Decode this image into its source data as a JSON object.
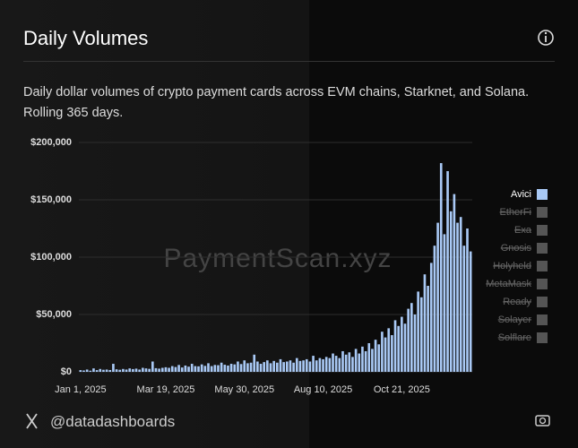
{
  "header": {
    "title": "Daily Volumes",
    "description": "Daily dollar volumes of crypto payment cards across EVM chains, Starknet, and Solana. Rolling 365 days."
  },
  "chart_data": {
    "type": "bar",
    "categories": [
      "Jan 1, 2025",
      null,
      null,
      null,
      null,
      null,
      null,
      null,
      null,
      null,
      null,
      null,
      null,
      null,
      null,
      null,
      null,
      null,
      null,
      null,
      null,
      null,
      null,
      null,
      null,
      null,
      "Mar 19, 2025",
      null,
      null,
      null,
      null,
      null,
      null,
      null,
      null,
      null,
      null,
      null,
      null,
      null,
      null,
      null,
      null,
      null,
      null,
      null,
      null,
      null,
      null,
      null,
      "May 30, 2025",
      null,
      null,
      null,
      null,
      null,
      null,
      null,
      null,
      null,
      null,
      null,
      null,
      null,
      null,
      null,
      null,
      null,
      null,
      null,
      null,
      null,
      null,
      null,
      "Aug 10, 2025",
      null,
      null,
      null,
      null,
      null,
      null,
      null,
      null,
      null,
      null,
      null,
      null,
      null,
      null,
      null,
      null,
      null,
      null,
      null,
      null,
      null,
      null,
      null,
      "Oct 21, 2025",
      null,
      null,
      null,
      null,
      null,
      null,
      null,
      null,
      null,
      null,
      null,
      null,
      null,
      null,
      null,
      null,
      null,
      null,
      null,
      null,
      null
    ],
    "series": [
      {
        "name": "Avici",
        "color": "#a9c9f5",
        "values": [
          1500,
          1200,
          2000,
          1000,
          3000,
          1500,
          2500,
          1800,
          2000,
          1600,
          7000,
          2200,
          1800,
          2500,
          2000,
          3000,
          2400,
          2800,
          2000,
          3500,
          3000,
          2600,
          9000,
          3200,
          2800,
          3500,
          4000,
          3500,
          5000,
          4200,
          6000,
          3800,
          5500,
          4500,
          7000,
          5000,
          4800,
          6500,
          5200,
          7500,
          5000,
          6000,
          5800,
          8000,
          6200,
          5500,
          7000,
          6500,
          9000,
          6800,
          10000,
          7500,
          8000,
          15000,
          9000,
          7000,
          8500,
          10000,
          7500,
          9500,
          8000,
          11000,
          8500,
          9000,
          10000,
          8000,
          12000,
          9500,
          10000,
          11000,
          9000,
          14000,
          10000,
          12000,
          11000,
          13000,
          12000,
          16000,
          14000,
          12000,
          18000,
          15000,
          17000,
          13000,
          20000,
          16000,
          22000,
          18000,
          25000,
          20000,
          28000,
          24000,
          35000,
          30000,
          38000,
          32000,
          45000,
          40000,
          48000,
          42000,
          55000,
          60000,
          50000,
          70000,
          65000,
          85000,
          75000,
          95000,
          110000,
          130000,
          182000,
          120000,
          175000,
          140000,
          155000,
          130000,
          135000,
          110000,
          125000,
          105000
        ]
      },
      {
        "name": "EtherFi",
        "color": "#555555",
        "hidden": true
      },
      {
        "name": "Exa",
        "color": "#555555",
        "hidden": true
      },
      {
        "name": "Gnosis",
        "color": "#555555",
        "hidden": true
      },
      {
        "name": "Holyheld",
        "color": "#555555",
        "hidden": true
      },
      {
        "name": "MetaMask",
        "color": "#555555",
        "hidden": true
      },
      {
        "name": "Ready",
        "color": "#555555",
        "hidden": true
      },
      {
        "name": "Solayer",
        "color": "#555555",
        "hidden": true
      },
      {
        "name": "Solflare",
        "color": "#555555",
        "hidden": true
      }
    ],
    "ylim": [
      0,
      200000
    ],
    "yticks": [
      {
        "value": 0,
        "label": "$0"
      },
      {
        "value": 50000,
        "label": "$50,000"
      },
      {
        "value": 100000,
        "label": "$100,000"
      },
      {
        "value": 150000,
        "label": "$150,000"
      },
      {
        "value": 200000,
        "label": "$200,000"
      }
    ],
    "grid": true,
    "legend": "right",
    "watermark": "PaymentScan.xyz"
  },
  "footer": {
    "handle": "@datadashboards"
  }
}
